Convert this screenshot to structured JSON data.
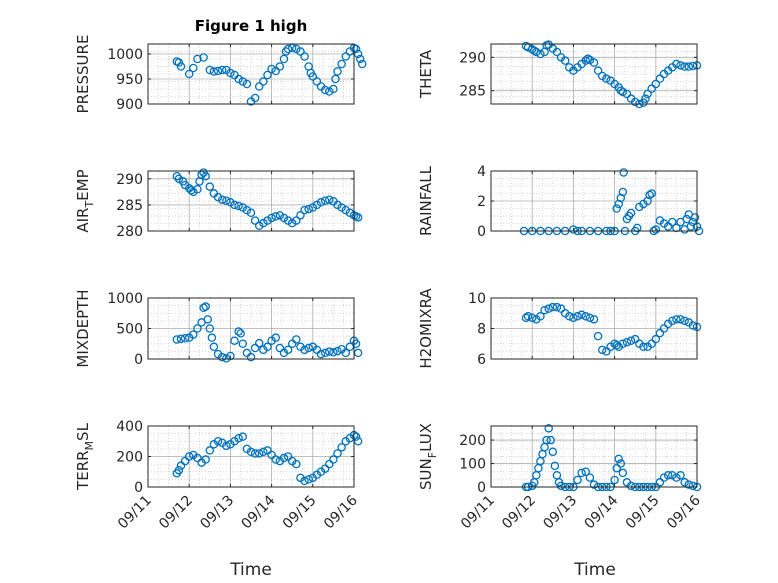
{
  "figure_title": "Figure 1 high",
  "marker_color": "#0072BD",
  "chart_data": [
    {
      "type": "scatter",
      "panel": "left",
      "row": 0,
      "ylabel": "PRESSURE",
      "ylim": [
        900,
        1020
      ],
      "yticks": [
        "900",
        "950",
        "1000"
      ],
      "grid": true,
      "marker": "circle-open",
      "x": [
        0.7,
        0.75,
        0.8,
        1.0,
        1.1,
        1.2,
        1.35,
        1.5,
        1.6,
        1.7,
        1.8,
        1.9,
        2.0,
        2.1,
        2.2,
        2.3,
        2.4,
        2.5,
        2.6,
        2.7,
        2.8,
        2.9,
        3.0,
        3.1,
        3.2,
        3.3,
        3.35,
        3.4,
        3.5,
        3.6,
        3.7,
        3.8,
        3.9,
        3.95,
        4.0,
        4.1,
        4.2,
        4.3,
        4.4,
        4.5,
        4.55,
        4.6,
        4.7,
        4.8,
        4.9,
        5.0,
        5.05,
        5.1,
        5.15,
        5.2
      ],
      "y": [
        985,
        983,
        975,
        960,
        972,
        990,
        993,
        968,
        965,
        966,
        968,
        968,
        962,
        958,
        950,
        945,
        940,
        905,
        912,
        935,
        945,
        958,
        970,
        966,
        975,
        990,
        1005,
        1010,
        1012,
        1010,
        1005,
        995,
        975,
        962,
        955,
        945,
        935,
        928,
        925,
        930,
        950,
        965,
        980,
        995,
        1005,
        1012,
        1010,
        1000,
        990,
        980
      ]
    },
    {
      "type": "scatter",
      "panel": "right",
      "row": 0,
      "ylabel": "THETA",
      "ylim": [
        283,
        292
      ],
      "yticks": [
        "285",
        "290"
      ],
      "grid": true,
      "marker": "circle-open",
      "x": [
        0.85,
        0.9,
        1.0,
        1.05,
        1.1,
        1.2,
        1.3,
        1.35,
        1.4,
        1.5,
        1.6,
        1.7,
        1.8,
        1.9,
        2.0,
        2.1,
        2.2,
        2.3,
        2.35,
        2.4,
        2.5,
        2.6,
        2.7,
        2.8,
        2.9,
        3.0,
        3.1,
        3.15,
        3.2,
        3.3,
        3.4,
        3.5,
        3.6,
        3.7,
        3.75,
        3.8,
        3.9,
        4.0,
        4.1,
        4.2,
        4.3,
        4.4,
        4.5,
        4.6,
        4.7,
        4.8,
        4.9,
        5.0
      ],
      "y": [
        291.7,
        291.5,
        291.2,
        291.0,
        290.8,
        290.5,
        290.8,
        291.8,
        291.9,
        291.3,
        290.8,
        290.0,
        289.5,
        288.5,
        288.0,
        288.5,
        289.0,
        289.5,
        289.8,
        289.6,
        289.2,
        288.0,
        287.2,
        286.8,
        286.5,
        286.0,
        285.5,
        285.0,
        284.8,
        284.5,
        283.8,
        283.3,
        283.0,
        283.2,
        283.8,
        284.5,
        285.3,
        286.0,
        286.8,
        287.5,
        288.0,
        288.5,
        289.0,
        288.8,
        288.6,
        288.6,
        288.7,
        288.8
      ]
    },
    {
      "type": "scatter",
      "panel": "left",
      "row": 1,
      "ylabel": "AIR_TEMP",
      "ylim": [
        280,
        291.5
      ],
      "yticks": [
        "280",
        "285",
        "290"
      ],
      "grid": true,
      "marker": "circle-open",
      "x": [
        0.7,
        0.75,
        0.85,
        0.9,
        1.0,
        1.05,
        1.1,
        1.2,
        1.25,
        1.3,
        1.35,
        1.4,
        1.5,
        1.6,
        1.7,
        1.8,
        1.9,
        2.0,
        2.1,
        2.2,
        2.3,
        2.4,
        2.5,
        2.6,
        2.7,
        2.8,
        2.9,
        3.0,
        3.1,
        3.2,
        3.3,
        3.4,
        3.5,
        3.6,
        3.7,
        3.8,
        3.9,
        4.0,
        4.1,
        4.2,
        4.3,
        4.4,
        4.5,
        4.6,
        4.7,
        4.8,
        4.9,
        5.0,
        5.05,
        5.1
      ],
      "y": [
        290.5,
        290.0,
        289.5,
        288.8,
        288.2,
        287.8,
        287.5,
        288.0,
        289.5,
        290.8,
        291.2,
        290.5,
        288.5,
        287.2,
        286.5,
        286.0,
        285.8,
        285.5,
        285.0,
        284.8,
        284.5,
        284.0,
        283.5,
        282.0,
        281.0,
        281.5,
        282.0,
        282.5,
        282.8,
        283.0,
        282.5,
        282.0,
        281.5,
        282.0,
        283.0,
        284.0,
        284.2,
        284.5,
        285.0,
        285.5,
        285.8,
        286.0,
        285.7,
        285.0,
        284.5,
        284.0,
        283.5,
        283.0,
        282.8,
        282.6
      ]
    },
    {
      "type": "scatter",
      "panel": "right",
      "row": 1,
      "ylabel": "RAINFALL",
      "ylim": [
        0,
        4
      ],
      "yticks": [
        "0",
        "2",
        "4"
      ],
      "grid": true,
      "marker": "circle-open",
      "x": [
        0.8,
        1.0,
        1.2,
        1.4,
        1.6,
        1.8,
        2.0,
        2.1,
        2.2,
        2.4,
        2.6,
        2.8,
        2.9,
        3.0,
        3.05,
        3.1,
        3.15,
        3.2,
        3.22,
        3.25,
        3.3,
        3.35,
        3.4,
        3.5,
        3.55,
        3.6,
        3.7,
        3.8,
        3.85,
        3.9,
        3.95,
        4.0,
        4.1,
        4.2,
        4.3,
        4.4,
        4.5,
        4.6,
        4.7,
        4.75,
        4.8,
        4.85,
        4.9,
        4.95,
        5.0,
        5.05
      ],
      "y": [
        0,
        0,
        0,
        0,
        0,
        0,
        0.1,
        0,
        0,
        0,
        0,
        0,
        0,
        0,
        1.5,
        1.8,
        2.2,
        2.6,
        3.9,
        0,
        0.8,
        1.0,
        1.2,
        0,
        0.2,
        1.6,
        1.8,
        2.0,
        2.4,
        2.5,
        0,
        0.1,
        0.7,
        0.5,
        0.3,
        0.6,
        0.2,
        0.6,
        0.1,
        0.8,
        1.1,
        0.3,
        0.6,
        0.9,
        0.3,
        0
      ]
    },
    {
      "type": "scatter",
      "panel": "left",
      "row": 2,
      "ylabel": "MIXDEPTH",
      "ylim": [
        0,
        1000
      ],
      "yticks": [
        "0",
        "500",
        "1000"
      ],
      "grid": true,
      "marker": "circle-open",
      "x": [
        0.7,
        0.8,
        0.9,
        1.0,
        1.1,
        1.2,
        1.3,
        1.35,
        1.4,
        1.45,
        1.5,
        1.55,
        1.6,
        1.7,
        1.8,
        1.9,
        2.0,
        2.1,
        2.2,
        2.25,
        2.3,
        2.4,
        2.5,
        2.6,
        2.7,
        2.8,
        2.9,
        3.0,
        3.1,
        3.2,
        3.3,
        3.4,
        3.5,
        3.6,
        3.7,
        3.8,
        3.9,
        4.0,
        4.1,
        4.2,
        4.3,
        4.4,
        4.5,
        4.6,
        4.7,
        4.8,
        4.9,
        5.0,
        5.05,
        5.1
      ],
      "y": [
        320,
        330,
        340,
        350,
        400,
        500,
        600,
        840,
        860,
        650,
        500,
        350,
        200,
        80,
        30,
        10,
        50,
        300,
        450,
        420,
        250,
        100,
        30,
        180,
        260,
        150,
        200,
        300,
        350,
        180,
        100,
        150,
        250,
        320,
        200,
        150,
        180,
        200,
        150,
        80,
        100,
        120,
        110,
        130,
        160,
        100,
        200,
        300,
        250,
        100
      ]
    },
    {
      "type": "scatter",
      "panel": "right",
      "row": 2,
      "ylabel": "H2OMIXRA",
      "ylim": [
        6,
        10
      ],
      "yticks": [
        "6",
        "8",
        "10"
      ],
      "grid": true,
      "marker": "circle-open",
      "x": [
        0.85,
        0.9,
        1.0,
        1.1,
        1.2,
        1.3,
        1.4,
        1.5,
        1.6,
        1.7,
        1.8,
        1.9,
        2.0,
        2.1,
        2.2,
        2.3,
        2.4,
        2.5,
        2.6,
        2.7,
        2.8,
        2.9,
        3.0,
        3.05,
        3.1,
        3.2,
        3.3,
        3.4,
        3.5,
        3.6,
        3.7,
        3.8,
        3.9,
        4.0,
        4.1,
        4.2,
        4.3,
        4.4,
        4.5,
        4.6,
        4.7,
        4.8,
        4.9,
        5.0
      ],
      "y": [
        8.7,
        8.8,
        8.7,
        8.6,
        8.8,
        9.2,
        9.3,
        9.4,
        9.4,
        9.3,
        9.0,
        8.8,
        8.7,
        8.8,
        8.9,
        8.8,
        8.7,
        8.6,
        7.5,
        6.6,
        6.5,
        6.8,
        7.0,
        6.9,
        6.8,
        7.0,
        7.1,
        7.2,
        7.3,
        7.0,
        6.8,
        6.8,
        7.0,
        7.3,
        7.7,
        8.0,
        8.3,
        8.5,
        8.6,
        8.6,
        8.5,
        8.4,
        8.2,
        8.1
      ]
    },
    {
      "type": "scatter",
      "panel": "left",
      "row": 3,
      "ylabel": "TERR_MSL",
      "ylim": [
        0,
        400
      ],
      "yticks": [
        "0",
        "200",
        "400"
      ],
      "grid": true,
      "marker": "circle-open",
      "x": [
        0.7,
        0.75,
        0.8,
        0.9,
        1.0,
        1.1,
        1.2,
        1.3,
        1.4,
        1.5,
        1.6,
        1.7,
        1.8,
        1.9,
        2.0,
        2.1,
        2.2,
        2.3,
        2.4,
        2.5,
        2.6,
        2.7,
        2.8,
        2.9,
        3.0,
        3.1,
        3.2,
        3.3,
        3.4,
        3.5,
        3.6,
        3.7,
        3.8,
        3.9,
        4.0,
        4.1,
        4.2,
        4.3,
        4.4,
        4.5,
        4.6,
        4.7,
        4.8,
        4.9,
        5.0,
        5.05,
        5.1
      ],
      "y": [
        90,
        110,
        140,
        170,
        200,
        210,
        190,
        160,
        180,
        240,
        280,
        300,
        290,
        270,
        280,
        300,
        320,
        330,
        250,
        230,
        220,
        220,
        230,
        240,
        210,
        180,
        170,
        190,
        200,
        170,
        150,
        60,
        40,
        50,
        60,
        80,
        100,
        120,
        150,
        180,
        220,
        260,
        300,
        320,
        340,
        330,
        300
      ]
    },
    {
      "type": "scatter",
      "panel": "right",
      "row": 3,
      "ylabel": "SUN_FLUX",
      "ylim": [
        0,
        260
      ],
      "yticks": [
        "0",
        "100",
        "200"
      ],
      "grid": true,
      "marker": "circle-open",
      "x": [
        0.85,
        0.9,
        1.0,
        1.05,
        1.1,
        1.15,
        1.2,
        1.25,
        1.3,
        1.35,
        1.4,
        1.45,
        1.5,
        1.55,
        1.6,
        1.65,
        1.7,
        1.8,
        1.9,
        2.0,
        2.1,
        2.2,
        2.3,
        2.4,
        2.5,
        2.6,
        2.7,
        2.8,
        2.9,
        3.0,
        3.05,
        3.1,
        3.15,
        3.2,
        3.3,
        3.4,
        3.5,
        3.6,
        3.7,
        3.8,
        3.9,
        4.0,
        4.1,
        4.2,
        4.3,
        4.4,
        4.5,
        4.6,
        4.7,
        4.8,
        4.9,
        5.0
      ],
      "y": [
        0,
        0,
        5,
        20,
        50,
        80,
        110,
        140,
        170,
        200,
        250,
        200,
        150,
        90,
        50,
        20,
        5,
        0,
        0,
        0,
        30,
        60,
        65,
        40,
        10,
        0,
        0,
        0,
        0,
        30,
        80,
        120,
        100,
        60,
        20,
        5,
        0,
        0,
        0,
        0,
        0,
        0,
        20,
        40,
        50,
        50,
        40,
        50,
        20,
        10,
        5,
        0
      ]
    }
  ],
  "x_axis": {
    "label": "Time",
    "ticks": [
      "09/11",
      "09/12",
      "09/13",
      "09/14",
      "09/15",
      "09/16"
    ],
    "xlim": [
      0,
      5
    ]
  }
}
